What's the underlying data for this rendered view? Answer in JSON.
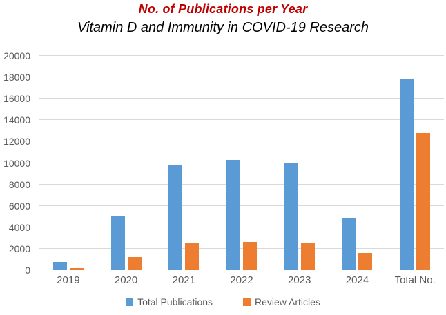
{
  "title": "No. of Publications per Year",
  "subtitle": "Vitamin D and Immunity in COVID-19 Research",
  "colors": {
    "title_accent": "#C00000",
    "gridline": "#D9D9D9",
    "axis_text": "#595959",
    "background": "#FFFFFF"
  },
  "legend": {
    "items": [
      {
        "label": "Total Publications",
        "color": "#5B9BD5"
      },
      {
        "label": "Review Articles",
        "color": "#ED7D31"
      }
    ]
  },
  "chart_data": {
    "type": "bar",
    "title": "No. of Publications per Year",
    "subtitle": "Vitamin D and Immunity in COVID-19 Research",
    "categories": [
      "2019",
      "2020",
      "2021",
      "2022",
      "2023",
      "2024",
      "Total No."
    ],
    "series": [
      {
        "name": "Total Publications",
        "color": "#5B9BD5",
        "values": [
          800,
          5050,
          9750,
          10300,
          10000,
          4900,
          17800
        ]
      },
      {
        "name": "Review Articles",
        "color": "#ED7D31",
        "values": [
          200,
          1200,
          2600,
          2650,
          2600,
          1600,
          12800
        ]
      }
    ],
    "xlabel": "",
    "ylabel": "",
    "ylim": [
      0,
      20000
    ],
    "ytick_step": 2000,
    "ytick_labels": [
      "0",
      "2000",
      "4000",
      "6000",
      "8000",
      "10000",
      "12000",
      "14000",
      "16000",
      "18000",
      "20000"
    ],
    "grid": true,
    "legend_position": "bottom"
  }
}
